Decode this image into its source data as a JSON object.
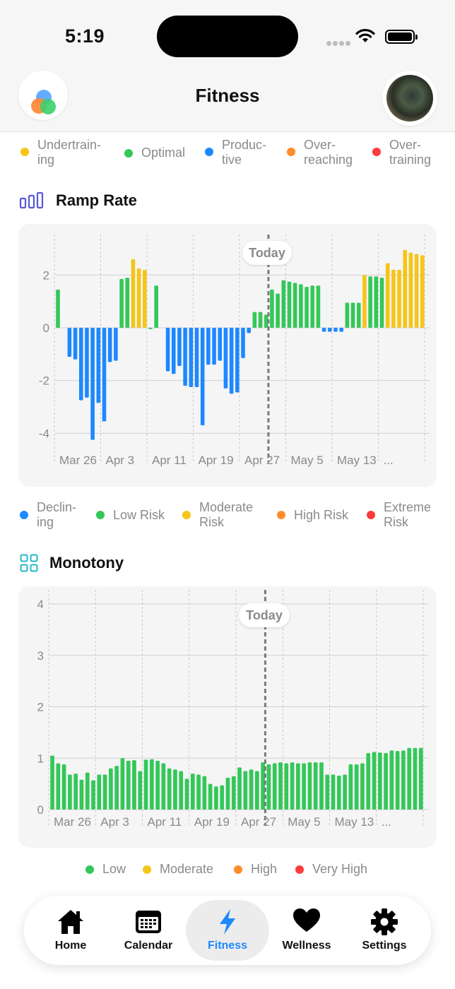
{
  "status": {
    "time": "5:19"
  },
  "header": {
    "title": "Fitness"
  },
  "top_legend": [
    {
      "line1": "Undertrain-",
      "line2": "ing",
      "color": "#f5c518"
    },
    {
      "line1": "Optimal",
      "line2": "",
      "color": "#34c759"
    },
    {
      "line1": "Produc-",
      "line2": "tive",
      "color": "#1e88ff"
    },
    {
      "line1": "Over-",
      "line2": "reaching",
      "color": "#ff8c2a"
    },
    {
      "line1": "Over-",
      "line2": "training",
      "color": "#ff3b3b"
    }
  ],
  "ramp": {
    "title": "Ramp Rate",
    "today_label": "Today",
    "y_ticks": [
      "2",
      "0",
      "-2",
      "-4"
    ],
    "x_ticks": [
      "Mar 26",
      "Apr 3",
      "Apr 11",
      "Apr 19",
      "Apr 27",
      "May 5",
      "May 13",
      "..."
    ]
  },
  "ramp_legend": [
    {
      "line1": "Declin-",
      "line2": "ing",
      "color": "#1e88ff"
    },
    {
      "line1": "Low Risk",
      "line2": "",
      "color": "#34c759"
    },
    {
      "line1": "Moderate",
      "line2": "Risk",
      "color": "#f5c518"
    },
    {
      "line1": "High Risk",
      "line2": "",
      "color": "#ff8c2a"
    },
    {
      "line1": "Extreme",
      "line2": "Risk",
      "color": "#ff3b3b"
    }
  ],
  "monotony": {
    "title": "Monotony",
    "today_label": "Today",
    "y_ticks": [
      "4",
      "3",
      "2",
      "1",
      "0"
    ],
    "x_ticks": [
      "Mar 26",
      "Apr 3",
      "Apr 11",
      "Apr 19",
      "Apr 27",
      "May 5",
      "May 13",
      "..."
    ]
  },
  "monotony_legend": [
    {
      "label": "Low",
      "color": "#34c759"
    },
    {
      "label": "Moderate",
      "color": "#f5c518"
    },
    {
      "label": "High",
      "color": "#ff8c2a"
    },
    {
      "label": "Very High",
      "color": "#ff3b3b"
    }
  ],
  "chart_data": [
    {
      "type": "bar",
      "title": "Ramp Rate",
      "ylim": [
        -4.5,
        3.0
      ],
      "y_ticks": [
        2,
        0,
        -2,
        -4
      ],
      "grid": true,
      "today_index": 37,
      "colors": {
        "Declining": "#1e88ff",
        "Low Risk": "#34c759",
        "Moderate Risk": "#f5c518"
      },
      "values": [
        1.45,
        0,
        -1.1,
        -1.2,
        -2.75,
        -2.65,
        -4.25,
        -2.85,
        -3.55,
        -1.3,
        -1.25,
        1.85,
        1.9,
        2.6,
        2.25,
        2.2,
        -0.05,
        1.6,
        0,
        -1.65,
        -1.75,
        -1.45,
        -2.2,
        -2.25,
        -2.25,
        -3.7,
        -1.4,
        -1.4,
        -1.25,
        -2.3,
        -2.5,
        -2.45,
        -1.15,
        -0.2,
        0.6,
        0.6,
        0.5,
        1.45,
        1.3,
        1.8,
        1.75,
        1.7,
        1.65,
        1.55,
        1.6,
        1.6,
        -0.15,
        -0.15,
        -0.15,
        -0.15,
        0.95,
        0.95,
        0.95,
        2.0,
        1.95,
        1.95,
        1.9,
        2.45,
        2.2,
        2.2,
        2.95,
        2.85,
        2.8,
        2.75
      ],
      "risk": [
        "L",
        "L",
        "D",
        "D",
        "D",
        "D",
        "D",
        "D",
        "D",
        "D",
        "D",
        "L",
        "L",
        "M",
        "M",
        "M",
        "L",
        "L",
        "L",
        "D",
        "D",
        "D",
        "D",
        "D",
        "D",
        "D",
        "D",
        "D",
        "D",
        "D",
        "D",
        "D",
        "D",
        "D",
        "L",
        "L",
        "L",
        "L",
        "L",
        "L",
        "L",
        "L",
        "L",
        "L",
        "L",
        "L",
        "D",
        "D",
        "D",
        "D",
        "L",
        "L",
        "L",
        "M",
        "L",
        "L",
        "L",
        "M",
        "M",
        "M",
        "M",
        "M",
        "M",
        "M"
      ]
    },
    {
      "type": "bar",
      "title": "Monotony",
      "ylim": [
        0,
        4
      ],
      "y_ticks": [
        4,
        3,
        2,
        1,
        0
      ],
      "grid": true,
      "today_index": 37,
      "colors": {
        "Low": "#34c759"
      },
      "values": [
        1.05,
        0.9,
        0.88,
        0.68,
        0.7,
        0.58,
        0.72,
        0.57,
        0.68,
        0.68,
        0.8,
        0.85,
        1.0,
        0.95,
        0.96,
        0.75,
        0.97,
        0.98,
        0.95,
        0.9,
        0.8,
        0.78,
        0.75,
        0.6,
        0.7,
        0.68,
        0.65,
        0.5,
        0.45,
        0.47,
        0.62,
        0.65,
        0.82,
        0.75,
        0.78,
        0.75,
        0.92,
        0.88,
        0.9,
        0.92,
        0.9,
        0.92,
        0.9,
        0.9,
        0.92,
        0.92,
        0.92,
        0.68,
        0.68,
        0.66,
        0.68,
        0.88,
        0.88,
        0.9,
        1.1,
        1.12,
        1.11,
        1.1,
        1.15,
        1.14,
        1.15,
        1.2,
        1.2,
        1.2
      ]
    }
  ],
  "tabs": [
    {
      "label": "Home",
      "icon": "house-icon"
    },
    {
      "label": "Calendar",
      "icon": "calendar-icon"
    },
    {
      "label": "Fitness",
      "icon": "bolt-icon"
    },
    {
      "label": "Wellness",
      "icon": "heart-icon"
    },
    {
      "label": "Settings",
      "icon": "gear-icon"
    }
  ],
  "accent": "#1e88ff"
}
